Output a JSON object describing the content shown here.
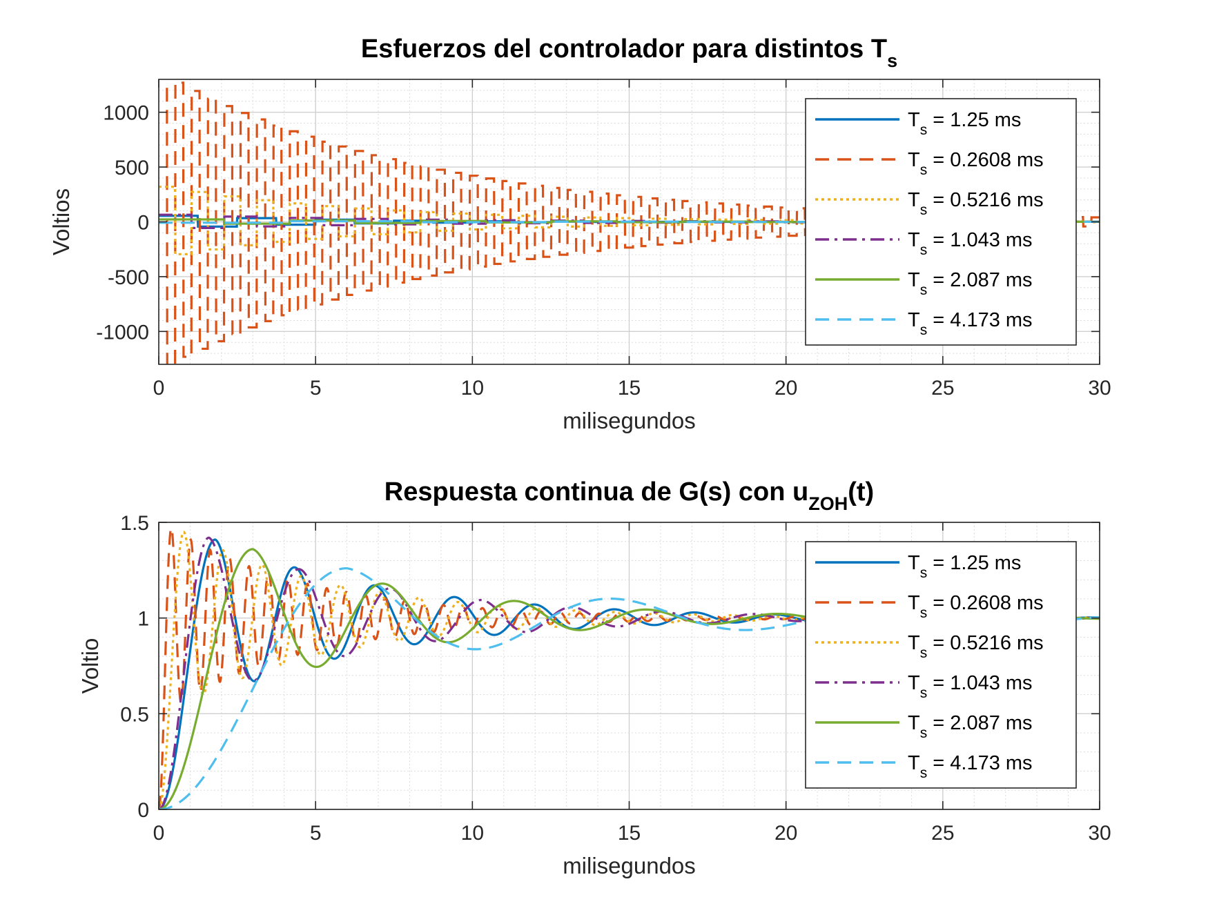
{
  "chart_data": [
    {
      "type": "line",
      "title": "Esfuerzos del controlador para distintos T",
      "title_subscript": "s",
      "xlabel": "milisegundos",
      "ylabel": "Voltios",
      "xlim": [
        0,
        30
      ],
      "ylim": [
        -1300,
        1300
      ],
      "xticks": [
        0,
        5,
        10,
        15,
        20,
        25,
        30
      ],
      "yticks": [
        -1000,
        -500,
        0,
        500,
        1000
      ],
      "grid": true,
      "minor_grid": true,
      "legend_position": "top-right",
      "series": [
        {
          "name": "T",
          "name_subscript": "s",
          "name_suffix": " = 1.25 ms",
          "color": "#0072BD",
          "style": "solid",
          "signal": {
            "kind": "step",
            "ts": 1.25,
            "amp": 55,
            "decay": 5.5,
            "period": 2.6,
            "offset": 0
          }
        },
        {
          "name": "T",
          "name_subscript": "s",
          "name_suffix": " = 0.2608 ms",
          "color": "#D95319",
          "style": "dashed",
          "signal": {
            "kind": "step",
            "ts": 0.2608,
            "amp": 1350,
            "decay": 8.5,
            "period": 0.5216,
            "offset": 0
          }
        },
        {
          "name": "T",
          "name_subscript": "s",
          "name_suffix": " = 0.5216 ms",
          "color": "#EDB120",
          "style": "dotted",
          "signal": {
            "kind": "step",
            "ts": 0.5216,
            "amp": 320,
            "decay": 6.5,
            "period": 1.0432,
            "offset": 0
          }
        },
        {
          "name": "T",
          "name_subscript": "s",
          "name_suffix": " = 1.043 ms",
          "color": "#7E2F8E",
          "style": "dashdot",
          "signal": {
            "kind": "step",
            "ts": 1.043,
            "amp": 65,
            "decay": 7.0,
            "period": 2.086,
            "offset": 0
          }
        },
        {
          "name": "T",
          "name_subscript": "s",
          "name_suffix": " = 2.087 ms",
          "color": "#77AC30",
          "style": "solid",
          "signal": {
            "kind": "step",
            "ts": 2.087,
            "amp": 22,
            "decay": 8.0,
            "period": 4.174,
            "offset": 0
          }
        },
        {
          "name": "T",
          "name_subscript": "s",
          "name_suffix": " = 4.173 ms",
          "color": "#4DBEEE",
          "style": "dashed",
          "signal": {
            "kind": "step",
            "ts": 4.173,
            "amp": 10,
            "decay": 9.0,
            "period": 8.346,
            "offset": 5
          }
        }
      ]
    },
    {
      "type": "line",
      "title": "Respuesta continua de G(s) con u",
      "title_subscript": "ZOH",
      "title_suffix": "(t)",
      "xlabel": "milisegundos",
      "ylabel": "Voltio",
      "xlim": [
        0,
        30
      ],
      "ylim": [
        0,
        1.5
      ],
      "xticks": [
        0,
        5,
        10,
        15,
        20,
        25,
        30
      ],
      "yticks": [
        0,
        0.5,
        1,
        1.5
      ],
      "grid": true,
      "minor_grid": true,
      "legend_position": "top-right",
      "series": [
        {
          "name": "T",
          "name_subscript": "s",
          "name_suffix": " = 1.25 ms",
          "color": "#0072BD",
          "style": "solid",
          "signal": {
            "kind": "response",
            "peak_t": 1.8,
            "peak": 1.41,
            "period": 2.55,
            "decay": 5.8
          }
        },
        {
          "name": "T",
          "name_subscript": "s",
          "name_suffix": " = 0.2608 ms",
          "color": "#D95319",
          "style": "dashed",
          "signal": {
            "kind": "response",
            "peak_t": 0.4,
            "peak": 1.47,
            "period": 0.62,
            "decay": 4.5
          }
        },
        {
          "name": "T",
          "name_subscript": "s",
          "name_suffix": " = 0.5216 ms",
          "color": "#EDB120",
          "style": "dotted",
          "signal": {
            "kind": "response",
            "peak_t": 0.8,
            "peak": 1.45,
            "period": 1.25,
            "decay": 5.2
          }
        },
        {
          "name": "T",
          "name_subscript": "s",
          "name_suffix": " = 1.043 ms",
          "color": "#7E2F8E",
          "style": "dashdot",
          "signal": {
            "kind": "response",
            "peak_t": 1.6,
            "peak": 1.42,
            "period": 2.9,
            "decay": 5.8
          }
        },
        {
          "name": "T",
          "name_subscript": "s",
          "name_suffix": " = 2.087 ms",
          "color": "#77AC30",
          "style": "solid",
          "signal": {
            "kind": "response",
            "peak_t": 3.0,
            "peak": 1.36,
            "period": 4.2,
            "decay": 6.0
          }
        },
        {
          "name": "T",
          "name_subscript": "s",
          "name_suffix": " = 4.173 ms",
          "color": "#4DBEEE",
          "style": "dashed",
          "signal": {
            "kind": "response",
            "peak_t": 6.0,
            "peak": 1.26,
            "period": 8.6,
            "decay": 9.0
          }
        }
      ]
    }
  ]
}
